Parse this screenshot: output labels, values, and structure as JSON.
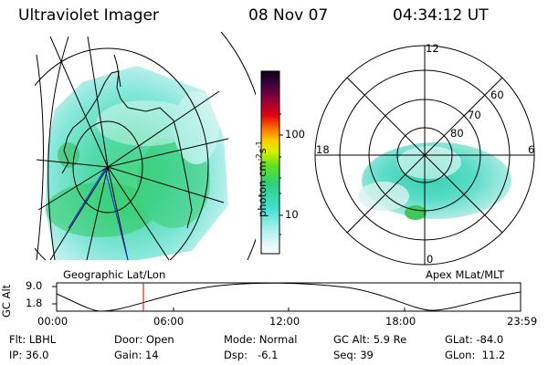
{
  "header": {
    "title": "Ultraviolet Imager",
    "date": "08 Nov 07",
    "time": "04:34:12 UT"
  },
  "geo_panel": {
    "caption": "Geographic Lat/Lon"
  },
  "apex_panel": {
    "caption": "Apex MLat/MLT",
    "mlt_labels": [
      "12",
      "18",
      "6",
      "0"
    ],
    "lat_labels": [
      "60",
      "70",
      "80"
    ]
  },
  "colorbar": {
    "label": "photon cm",
    "label_exp1": "-2",
    "label_s": "s",
    "label_exp2": "-1",
    "tick_labels": [
      "100",
      "10"
    ]
  },
  "altitude_plot": {
    "ylabel": "GC Alt",
    "ytick_labels": [
      "9.0",
      "1.8"
    ],
    "xtick_labels": [
      "00:00",
      "06:00",
      "12:00",
      "18:00",
      "23:59"
    ],
    "marker_color": "#cc0000"
  },
  "info": {
    "flt": "Flt: LBHL",
    "ip": "IP: 36.0",
    "door": "Door: Open",
    "gain": "Gain: 14",
    "mode": "Mode: Normal",
    "dsp": "Dsp:   -6.1",
    "gcalt": "GC Alt: 5.9 Re",
    "seq": "Seq: 39",
    "glat": "GLat: -84.0",
    "glon": "GLon:  11.2"
  }
}
